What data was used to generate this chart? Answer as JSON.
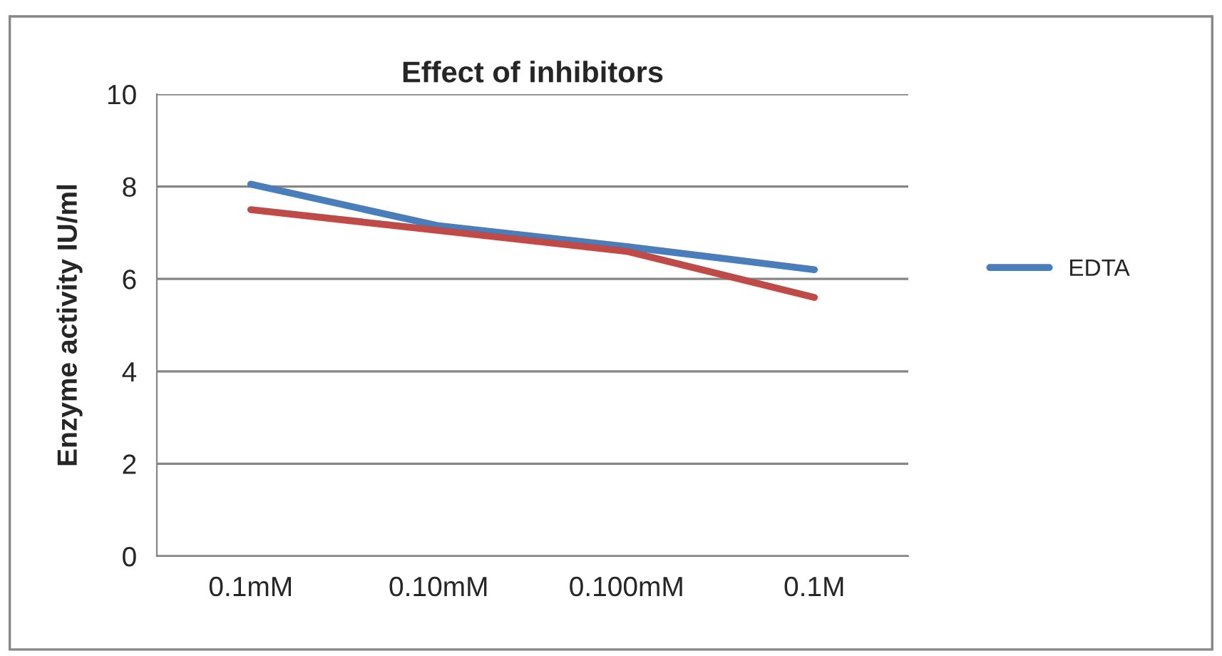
{
  "chart_data": {
    "type": "line",
    "title": "Effect of inhibitors",
    "ylabel": "Enzyme activity IU/ml",
    "categories": [
      "0.1mM",
      "0.10mM",
      "0.100mM",
      "0.1M"
    ],
    "series": [
      {
        "name": "EDTA",
        "color": "#4a7ebb",
        "values": [
          8.05,
          7.15,
          6.7,
          6.2
        ]
      },
      {
        "color": "#be4b48",
        "values": [
          7.5,
          7.05,
          6.6,
          5.6
        ]
      }
    ],
    "ylim": [
      0,
      10
    ],
    "yticks": [
      0,
      2,
      4,
      6,
      8,
      10
    ],
    "grid": "y",
    "legend": "right",
    "marker": "none",
    "line_style": "solid"
  }
}
